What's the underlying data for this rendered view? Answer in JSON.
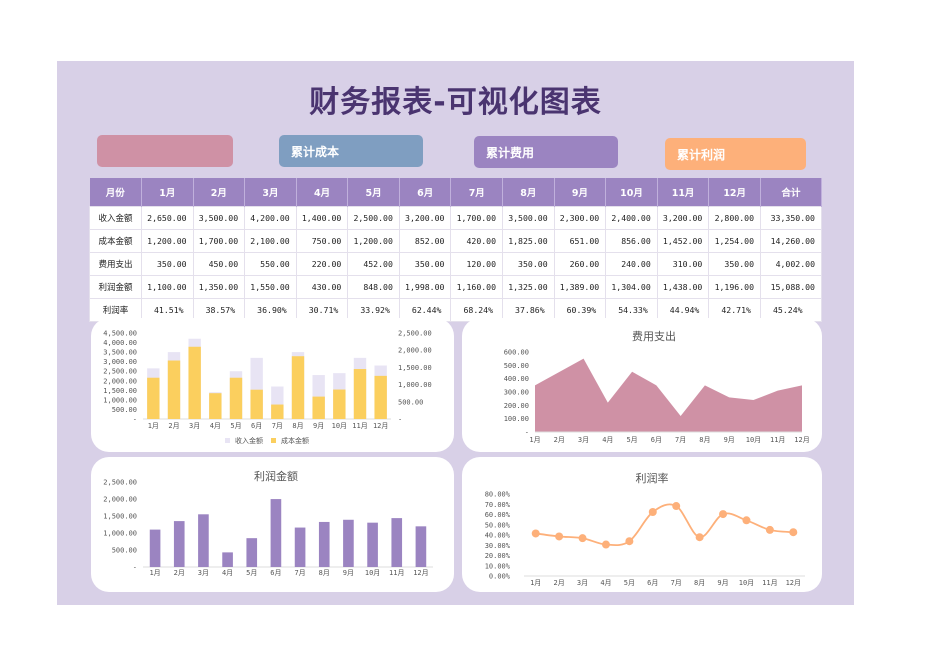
{
  "title": "财务报表-可视化图表",
  "kpis": [
    {
      "label": "",
      "color": "#cf91a5"
    },
    {
      "label": "累计成本",
      "color": "#7f9ec1"
    },
    {
      "label": "累计费用",
      "color": "#9b84c1"
    },
    {
      "label": "累计利润",
      "color": "#fdb07a"
    }
  ],
  "table": {
    "headers": [
      "月份",
      "1月",
      "2月",
      "3月",
      "4月",
      "5月",
      "6月",
      "7月",
      "8月",
      "9月",
      "10月",
      "11月",
      "12月",
      "合计"
    ],
    "rows": [
      {
        "label": "收入金额",
        "values": [
          "2,650.00",
          "3,500.00",
          "4,200.00",
          "1,400.00",
          "2,500.00",
          "3,200.00",
          "1,700.00",
          "3,500.00",
          "2,300.00",
          "2,400.00",
          "3,200.00",
          "2,800.00",
          "33,350.00"
        ]
      },
      {
        "label": "成本金额",
        "values": [
          "1,200.00",
          "1,700.00",
          "2,100.00",
          "750.00",
          "1,200.00",
          "852.00",
          "420.00",
          "1,825.00",
          "651.00",
          "856.00",
          "1,452.00",
          "1,254.00",
          "14,260.00"
        ]
      },
      {
        "label": "费用支出",
        "values": [
          "350.00",
          "450.00",
          "550.00",
          "220.00",
          "452.00",
          "350.00",
          "120.00",
          "350.00",
          "260.00",
          "240.00",
          "310.00",
          "350.00",
          "4,002.00"
        ]
      },
      {
        "label": "利润金额",
        "values": [
          "1,100.00",
          "1,350.00",
          "1,550.00",
          "430.00",
          "848.00",
          "1,998.00",
          "1,160.00",
          "1,325.00",
          "1,389.00",
          "1,304.00",
          "1,438.00",
          "1,196.00",
          "15,088.00"
        ]
      },
      {
        "label": "利润率",
        "values": [
          "41.51%",
          "38.57%",
          "36.90%",
          "30.71%",
          "33.92%",
          "62.44%",
          "68.24%",
          "37.86%",
          "60.39%",
          "54.33%",
          "44.94%",
          "42.71%",
          "45.24%"
        ]
      }
    ]
  },
  "chart_data": [
    {
      "type": "bar",
      "title": "",
      "categories": [
        "1月",
        "2月",
        "3月",
        "4月",
        "5月",
        "6月",
        "7月",
        "8月",
        "9月",
        "10月",
        "11月",
        "12月"
      ],
      "series": [
        {
          "name": "收入金额",
          "axis": "left",
          "color": "#e8e4f4",
          "values": [
            2650,
            3500,
            4200,
            1400,
            2500,
            3200,
            1700,
            3500,
            2300,
            2400,
            3200,
            2800
          ]
        },
        {
          "name": "成本金额",
          "axis": "right",
          "color": "#fbcf5e",
          "values": [
            1200,
            1700,
            2100,
            750,
            1200,
            852,
            420,
            1825,
            651,
            856,
            1452,
            1254
          ]
        }
      ],
      "yticks_left": [
        "-",
        "500.00",
        "1,000.00",
        "1,500.00",
        "2,000.00",
        "2,500.00",
        "3,000.00",
        "3,500.00",
        "4,000.00",
        "4,500.00"
      ],
      "yticks_right": [
        "-",
        "500.00",
        "1,000.00",
        "1,500.00",
        "2,000.00",
        "2,500.00"
      ],
      "ylim_left": [
        0,
        4500
      ],
      "ylim_right": [
        0,
        2500
      ],
      "legend": [
        "收入金额",
        "成本金额"
      ],
      "legend_position": "bottom"
    },
    {
      "type": "area",
      "title": "费用支出",
      "categories": [
        "1月",
        "2月",
        "3月",
        "4月",
        "5月",
        "6月",
        "7月",
        "8月",
        "9月",
        "10月",
        "11月",
        "12月"
      ],
      "values": [
        350,
        450,
        550,
        220,
        452,
        350,
        120,
        350,
        260,
        240,
        310,
        350
      ],
      "color": "#cf91a5",
      "yticks": [
        "-",
        "100.00",
        "200.00",
        "300.00",
        "400.00",
        "500.00",
        "600.00"
      ],
      "ylim": [
        0,
        600
      ]
    },
    {
      "type": "bar",
      "title": "利润金额",
      "categories": [
        "1月",
        "2月",
        "3月",
        "4月",
        "5月",
        "6月",
        "7月",
        "8月",
        "9月",
        "10月",
        "11月",
        "12月"
      ],
      "values": [
        1100,
        1350,
        1550,
        430,
        848,
        1998,
        1160,
        1325,
        1389,
        1304,
        1438,
        1196
      ],
      "color": "#9b84c1",
      "yticks": [
        "-",
        "500.00",
        "1,000.00",
        "1,500.00",
        "2,000.00",
        "2,500.00"
      ],
      "ylim": [
        0,
        2500
      ]
    },
    {
      "type": "line",
      "title": "利润率",
      "categories": [
        "1月",
        "2月",
        "3月",
        "4月",
        "5月",
        "6月",
        "7月",
        "8月",
        "9月",
        "10月",
        "11月",
        "12月"
      ],
      "values": [
        41.51,
        38.57,
        36.9,
        30.71,
        33.92,
        62.44,
        68.24,
        37.86,
        60.39,
        54.33,
        44.94,
        42.71
      ],
      "color": "#fdb07a",
      "yticks": [
        "0.00%",
        "10.00%",
        "20.00%",
        "30.00%",
        "40.00%",
        "50.00%",
        "60.00%",
        "70.00%",
        "80.00%"
      ],
      "ylim": [
        0,
        80
      ]
    }
  ]
}
